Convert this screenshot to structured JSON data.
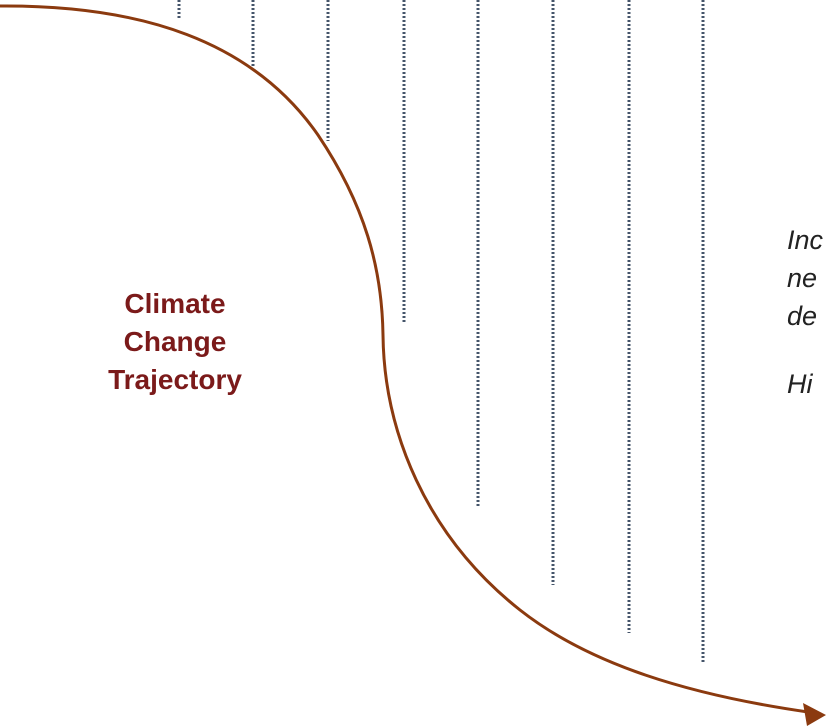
{
  "diagram": {
    "trajectory_label": [
      "Climate",
      "Change",
      "Trajectory"
    ],
    "side_text_lines": [
      "Inc",
      "ne",
      "de",
      "Hi"
    ],
    "colors": {
      "trajectory": "#8b3a0f",
      "title": "#7b1a1a",
      "dotted_lines": "#44546a",
      "side_text": "#222222"
    },
    "dotted_line_count": 8,
    "arrow_icon": "arrowhead-right"
  }
}
